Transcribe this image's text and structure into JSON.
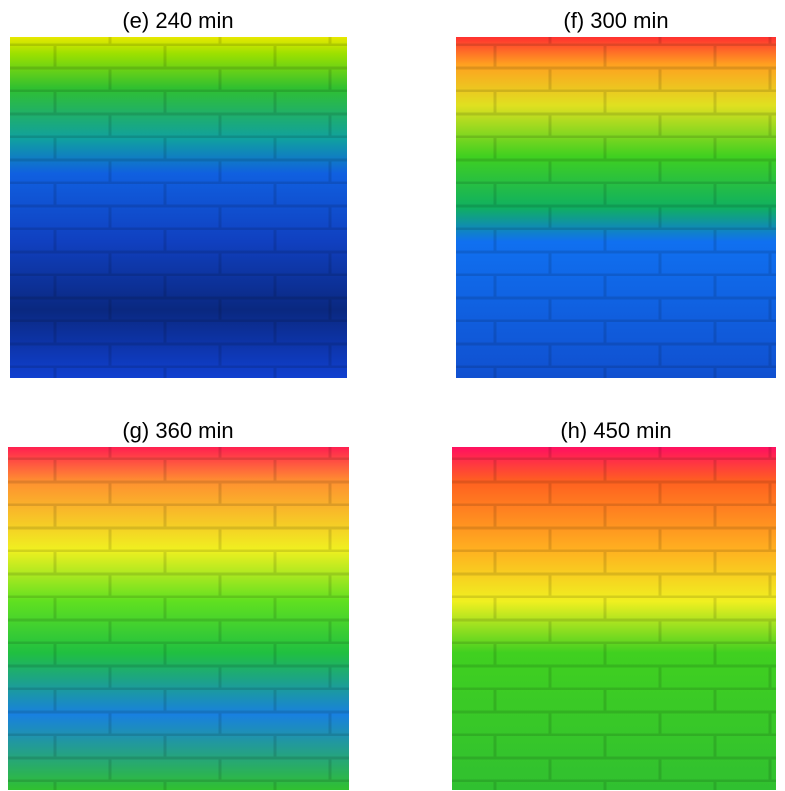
{
  "panels": [
    {
      "label": "(e) 240 min"
    },
    {
      "label": "(f) 300 min"
    },
    {
      "label": "(g) 360 min"
    },
    {
      "label": "(h) 450 min"
    }
  ]
}
